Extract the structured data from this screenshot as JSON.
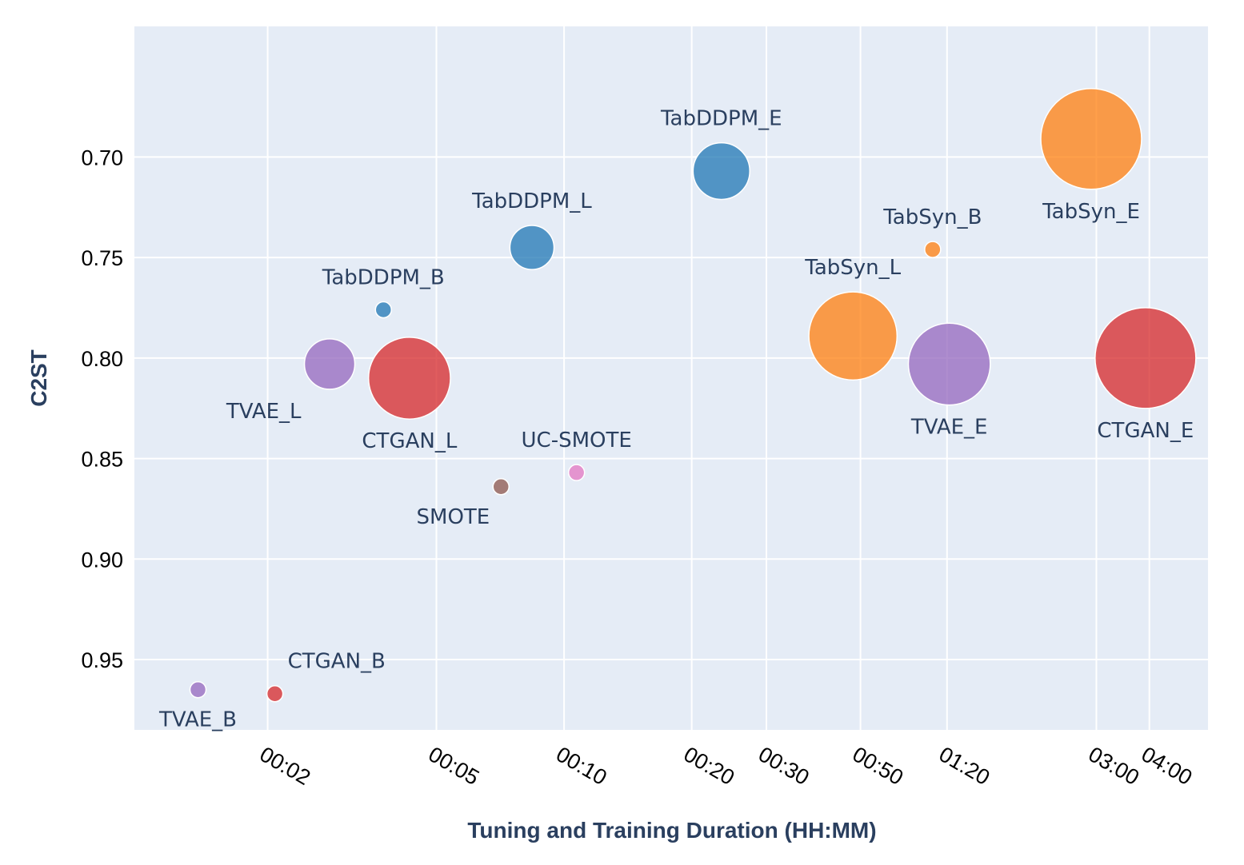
{
  "chart_data": {
    "type": "scatter",
    "xlabel": "Tuning and Training Duration (HH:MM)",
    "ylabel": "C2ST",
    "x_scale": "log",
    "x_unit": "minutes",
    "xlim": [
      0.97,
      330
    ],
    "ylim": [
      0.985,
      0.635
    ],
    "y_reversed": true,
    "x_ticks": [
      {
        "value": 2,
        "label": "00:02"
      },
      {
        "value": 5,
        "label": "00:05"
      },
      {
        "value": 10,
        "label": "00:10"
      },
      {
        "value": 20,
        "label": "00:20"
      },
      {
        "value": 30,
        "label": "00:30"
      },
      {
        "value": 50,
        "label": "00:50"
      },
      {
        "value": 80,
        "label": "01:20"
      },
      {
        "value": 180,
        "label": "03:00"
      },
      {
        "value": 240,
        "label": "04:00"
      }
    ],
    "y_ticks": [
      {
        "value": 0.7,
        "label": "0.70"
      },
      {
        "value": 0.75,
        "label": "0.75"
      },
      {
        "value": 0.8,
        "label": "0.80"
      },
      {
        "value": 0.85,
        "label": "0.85"
      },
      {
        "value": 0.9,
        "label": "0.90"
      },
      {
        "value": 0.95,
        "label": "0.95"
      }
    ],
    "colors": {
      "TabDDPM": "#1f77b4",
      "TabSyn": "#ff7f0e",
      "CTGAN": "#d62728",
      "TVAE": "#9467bd",
      "SMOTE": "#8c564b",
      "UC-SMOTE": "#e377c2"
    },
    "points": [
      {
        "label": "TVAE_B",
        "family": "TVAE",
        "x": 1.37,
        "y": 0.965,
        "size": 1,
        "label_pos": "bottom"
      },
      {
        "label": "CTGAN_B",
        "family": "CTGAN",
        "x": 2.08,
        "y": 0.967,
        "size": 1,
        "label_pos": "top-right"
      },
      {
        "label": "TVAE_L",
        "family": "TVAE",
        "x": 2.8,
        "y": 0.803,
        "size": 4,
        "label_pos": "bottom-left"
      },
      {
        "label": "TabDDPM_B",
        "family": "TabDDPM",
        "x": 3.75,
        "y": 0.776,
        "size": 1,
        "label_pos": "top"
      },
      {
        "label": "CTGAN_L",
        "family": "CTGAN",
        "x": 4.32,
        "y": 0.81,
        "size": 6.5,
        "label_pos": "bottom"
      },
      {
        "label": "SMOTE",
        "family": "SMOTE",
        "x": 7.1,
        "y": 0.864,
        "size": 1,
        "label_pos": "bottom-left"
      },
      {
        "label": "TabDDPM_L",
        "family": "TabDDPM",
        "x": 8.4,
        "y": 0.745,
        "size": 3.5,
        "label_pos": "top"
      },
      {
        "label": "UC-SMOTE",
        "family": "UC-SMOTE",
        "x": 10.7,
        "y": 0.857,
        "size": 1,
        "label_pos": "top"
      },
      {
        "label": "TabDDPM_E",
        "family": "TabDDPM",
        "x": 23.5,
        "y": 0.707,
        "size": 4.5,
        "label_pos": "top"
      },
      {
        "label": "TabSyn_L",
        "family": "TabSyn",
        "x": 48,
        "y": 0.789,
        "size": 7,
        "label_pos": "top"
      },
      {
        "label": "TabSyn_B",
        "family": "TabSyn",
        "x": 74,
        "y": 0.746,
        "size": 1,
        "label_pos": "top"
      },
      {
        "label": "TVAE_E",
        "family": "TVAE",
        "x": 81,
        "y": 0.803,
        "size": 6.5,
        "label_pos": "bottom"
      },
      {
        "label": "TabSyn_E",
        "family": "TabSyn",
        "x": 175,
        "y": 0.691,
        "size": 8,
        "label_pos": "bottom"
      },
      {
        "label": "CTGAN_E",
        "family": "CTGAN",
        "x": 235,
        "y": 0.8,
        "size": 8,
        "label_pos": "bottom"
      }
    ]
  }
}
